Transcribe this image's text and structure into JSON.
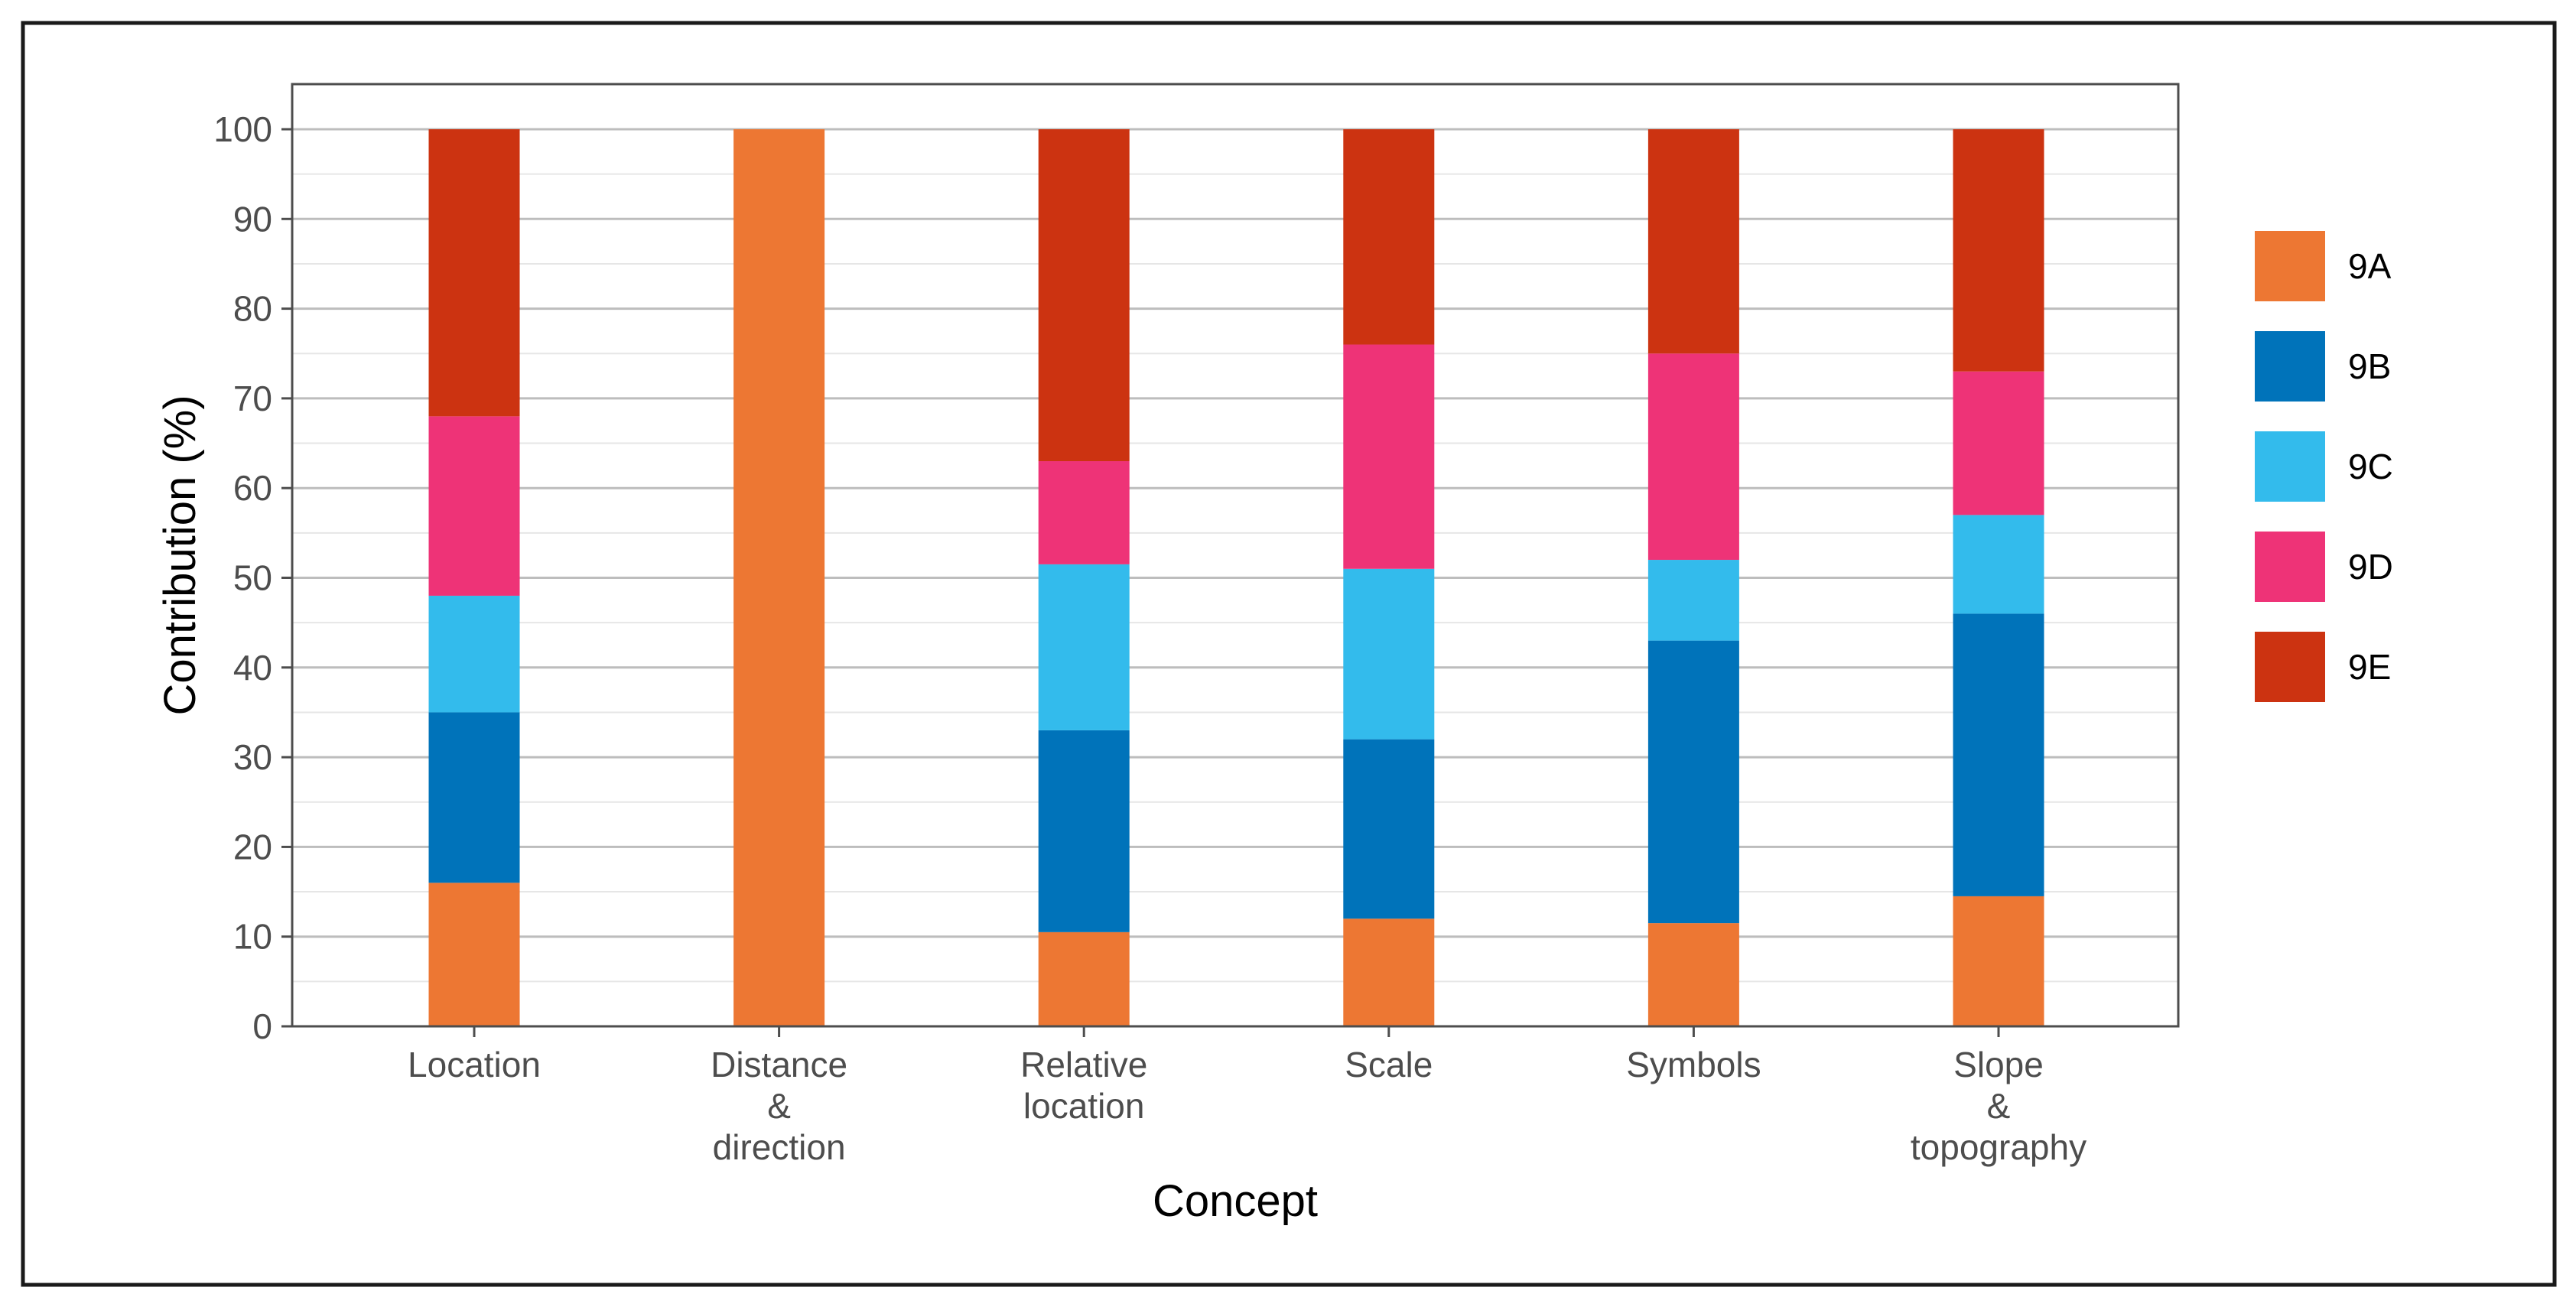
{
  "chart_data": {
    "type": "bar",
    "stacked": true,
    "xlabel": "Concept",
    "ylabel": "Contribution (%)",
    "ylim": [
      0,
      100
    ],
    "ytick_step": 10,
    "yticks": [
      "0",
      "10",
      "20",
      "30",
      "40",
      "50",
      "60",
      "70",
      "80",
      "90",
      "100"
    ],
    "grid": true,
    "legend_position": "right",
    "categories": [
      [
        "Location"
      ],
      [
        "Distance",
        "&",
        "direction"
      ],
      [
        "Relative",
        "location"
      ],
      [
        "Scale"
      ],
      [
        "Symbols"
      ],
      [
        "Slope",
        "&",
        "topography"
      ]
    ],
    "series": [
      {
        "name": "9A",
        "color": "#ED7733",
        "values": [
          16,
          100,
          10.5,
          12,
          11.5,
          14.5
        ]
      },
      {
        "name": "9B",
        "color": "#0073BA",
        "values": [
          19,
          0,
          22.5,
          20,
          31.5,
          31.5
        ]
      },
      {
        "name": "9C",
        "color": "#33BBEC",
        "values": [
          13,
          0,
          18.5,
          19,
          9,
          11
        ]
      },
      {
        "name": "9D",
        "color": "#EE3377",
        "values": [
          20,
          0,
          11.5,
          25,
          23,
          16
        ]
      },
      {
        "name": "9E",
        "color": "#CC3311",
        "values": [
          32,
          0,
          37,
          24,
          25,
          27
        ]
      }
    ]
  }
}
